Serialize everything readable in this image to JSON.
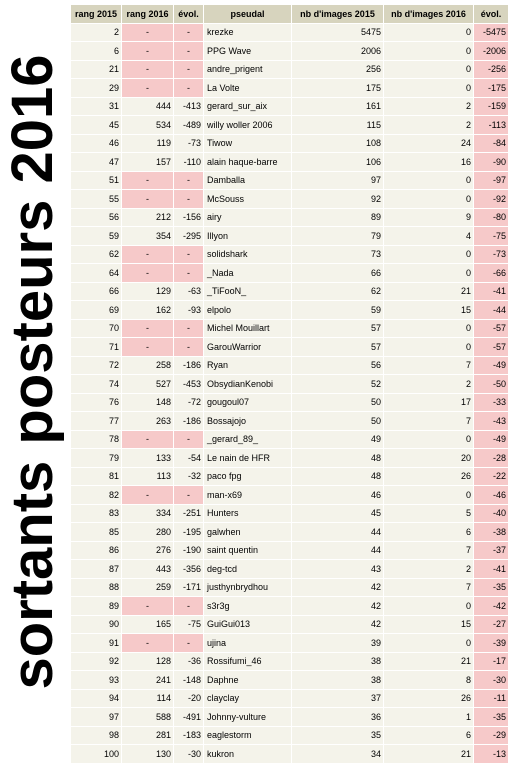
{
  "title": "sortants posteurs 2016",
  "columns": [
    "rang 2015",
    "rang 2016",
    "évol.",
    "pseudal",
    "nb d'images 2015",
    "nb d'images 2016",
    "évol."
  ],
  "rows": [
    [
      "2",
      "-",
      "-",
      "krezke",
      "5475",
      "0",
      "-5475"
    ],
    [
      "6",
      "-",
      "-",
      "PPG Wave",
      "2006",
      "0",
      "-2006"
    ],
    [
      "21",
      "-",
      "-",
      "andre_prigent",
      "256",
      "0",
      "-256"
    ],
    [
      "29",
      "-",
      "-",
      "La Volte",
      "175",
      "0",
      "-175"
    ],
    [
      "31",
      "444",
      "-413",
      "gerard_sur_aix",
      "161",
      "2",
      "-159"
    ],
    [
      "45",
      "534",
      "-489",
      "willy woller 2006",
      "115",
      "2",
      "-113"
    ],
    [
      "46",
      "119",
      "-73",
      "Tiwow",
      "108",
      "24",
      "-84"
    ],
    [
      "47",
      "157",
      "-110",
      "alain haque-barre",
      "106",
      "16",
      "-90"
    ],
    [
      "51",
      "-",
      "-",
      "Damballa",
      "97",
      "0",
      "-97"
    ],
    [
      "55",
      "-",
      "-",
      "McSouss",
      "92",
      "0",
      "-92"
    ],
    [
      "56",
      "212",
      "-156",
      "airy",
      "89",
      "9",
      "-80"
    ],
    [
      "59",
      "354",
      "-295",
      "Illyon",
      "79",
      "4",
      "-75"
    ],
    [
      "62",
      "-",
      "-",
      "solidshark",
      "73",
      "0",
      "-73"
    ],
    [
      "64",
      "-",
      "-",
      "_Nada",
      "66",
      "0",
      "-66"
    ],
    [
      "66",
      "129",
      "-63",
      "_TiFooN_",
      "62",
      "21",
      "-41"
    ],
    [
      "69",
      "162",
      "-93",
      "elpolo",
      "59",
      "15",
      "-44"
    ],
    [
      "70",
      "-",
      "-",
      "Michel Mouillart",
      "57",
      "0",
      "-57"
    ],
    [
      "71",
      "-",
      "-",
      "GarouWarrior",
      "57",
      "0",
      "-57"
    ],
    [
      "72",
      "258",
      "-186",
      "Ryan",
      "56",
      "7",
      "-49"
    ],
    [
      "74",
      "527",
      "-453",
      "ObsydianKenobi",
      "52",
      "2",
      "-50"
    ],
    [
      "76",
      "148",
      "-72",
      "gougoul07",
      "50",
      "17",
      "-33"
    ],
    [
      "77",
      "263",
      "-186",
      "Bossajojo",
      "50",
      "7",
      "-43"
    ],
    [
      "78",
      "-",
      "-",
      "_gerard_89_",
      "49",
      "0",
      "-49"
    ],
    [
      "79",
      "133",
      "-54",
      "Le nain de HFR",
      "48",
      "20",
      "-28"
    ],
    [
      "81",
      "113",
      "-32",
      "paco fpg",
      "48",
      "26",
      "-22"
    ],
    [
      "82",
      "-",
      "-",
      "man-x69",
      "46",
      "0",
      "-46"
    ],
    [
      "83",
      "334",
      "-251",
      "Hunters",
      "45",
      "5",
      "-40"
    ],
    [
      "85",
      "280",
      "-195",
      "galwhen",
      "44",
      "6",
      "-38"
    ],
    [
      "86",
      "276",
      "-190",
      "saint quentin",
      "44",
      "7",
      "-37"
    ],
    [
      "87",
      "443",
      "-356",
      "deg-tcd",
      "43",
      "2",
      "-41"
    ],
    [
      "88",
      "259",
      "-171",
      "justhynbrydhou",
      "42",
      "7",
      "-35"
    ],
    [
      "89",
      "-",
      "-",
      "s3r3g",
      "42",
      "0",
      "-42"
    ],
    [
      "90",
      "165",
      "-75",
      "GuiGui013",
      "42",
      "15",
      "-27"
    ],
    [
      "91",
      "-",
      "-",
      "ujina",
      "39",
      "0",
      "-39"
    ],
    [
      "92",
      "128",
      "-36",
      "Rossifumi_46",
      "38",
      "21",
      "-17"
    ],
    [
      "93",
      "241",
      "-148",
      "Daphne",
      "38",
      "8",
      "-30"
    ],
    [
      "94",
      "114",
      "-20",
      "clayclay",
      "37",
      "26",
      "-11"
    ],
    [
      "97",
      "588",
      "-491",
      "Johnny-vulture",
      "36",
      "1",
      "-35"
    ],
    [
      "98",
      "281",
      "-183",
      "eaglestorm",
      "35",
      "6",
      "-29"
    ],
    [
      "100",
      "130",
      "-30",
      "kukron",
      "34",
      "21",
      "-13"
    ]
  ]
}
